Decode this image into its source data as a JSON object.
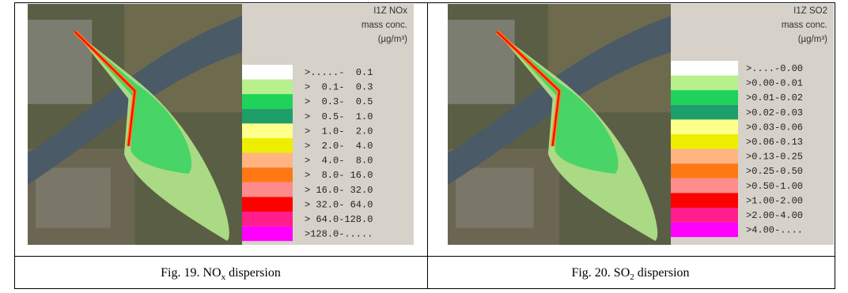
{
  "figures": [
    {
      "legend_title": [
        "I1Z NOx",
        "mass conc.",
        "(µg/m³)"
      ],
      "legend": [
        {
          "label": ">.....-  0.1",
          "color": "#ffffff"
        },
        {
          "label": ">  0.1-  0.3",
          "color": "#b9f08e"
        },
        {
          "label": ">  0.3-  0.5",
          "color": "#1ed25a"
        },
        {
          "label": ">  0.5-  1.0",
          "color": "#1e9e68"
        },
        {
          "label": ">  1.0-  2.0",
          "color": "#ffff8c"
        },
        {
          "label": ">  2.0-  4.0",
          "color": "#eeee00"
        },
        {
          "label": ">  4.0-  8.0",
          "color": "#ffb482"
        },
        {
          "label": ">  8.0- 16.0",
          "color": "#ff7814"
        },
        {
          "label": "> 16.0- 32.0",
          "color": "#ff8c8c"
        },
        {
          "label": "> 32.0- 64.0",
          "color": "#ff0000"
        },
        {
          "label": "> 64.0-128.0",
          "color": "#ff1e8c"
        },
        {
          "label": ">128.0-.....",
          "color": "#ff00ff"
        }
      ],
      "caption": {
        "text": "Fig. 19. NO",
        "sub": "x",
        "after": " dispersion"
      }
    },
    {
      "legend_title": [
        "I1Z SO2",
        "mass conc.",
        "(µg/m³)"
      ],
      "legend": [
        {
          "label": ">....-0.00",
          "color": "#ffffff"
        },
        {
          "label": ">0.00-0.01",
          "color": "#b9f08e"
        },
        {
          "label": ">0.01-0.02",
          "color": "#1ed25a"
        },
        {
          "label": ">0.02-0.03",
          "color": "#1e9e68"
        },
        {
          "label": ">0.03-0.06",
          "color": "#ffff8c"
        },
        {
          "label": ">0.06-0.13",
          "color": "#eeee00"
        },
        {
          "label": ">0.13-0.25",
          "color": "#ffb482"
        },
        {
          "label": ">0.25-0.50",
          "color": "#ff7814"
        },
        {
          "label": ">0.50-1.00",
          "color": "#ff8c8c"
        },
        {
          "label": ">1.00-2.00",
          "color": "#ff0000"
        },
        {
          "label": ">2.00-4.00",
          "color": "#ff1e8c"
        },
        {
          "label": ">4.00-....",
          "color": "#ff00ff"
        }
      ],
      "caption": {
        "text": "Fig. 20. SO",
        "sub": "2",
        "after": " dispersion"
      }
    }
  ]
}
